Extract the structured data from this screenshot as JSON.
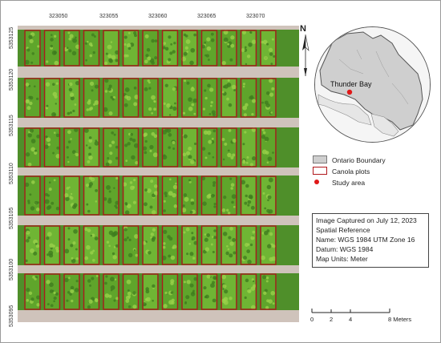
{
  "top_coords": [
    "323050",
    "323055",
    "323060",
    "323065",
    "323070"
  ],
  "left_coords": [
    "5353125",
    "5353120",
    "5353115",
    "5353110",
    "5353105",
    "5353100",
    "5353095"
  ],
  "north_label": "N",
  "inset_map": {
    "city_label": "Thunder Bay"
  },
  "legend": {
    "ontario": "Ontario Boundary",
    "canola": "Canola plots",
    "study": "Study area"
  },
  "info": {
    "captured": "Image Captured on July 12, 2023",
    "spatial_ref": "Spatial Reference",
    "name": "Name: WGS 1984 UTM Zone 16",
    "datum": "Datum: WGS 1984",
    "units": "Map Units: Meter"
  },
  "scale_bar": {
    "labels": [
      "0",
      "2",
      "4",
      "8 Meters"
    ],
    "ticks_m": [
      0,
      2,
      4,
      8
    ]
  },
  "colors": {
    "plot_outline": "#b0171c",
    "crop": "#5fa52b",
    "soil": "#cfc3bb",
    "boundary_fill": "#cfcfcf"
  }
}
